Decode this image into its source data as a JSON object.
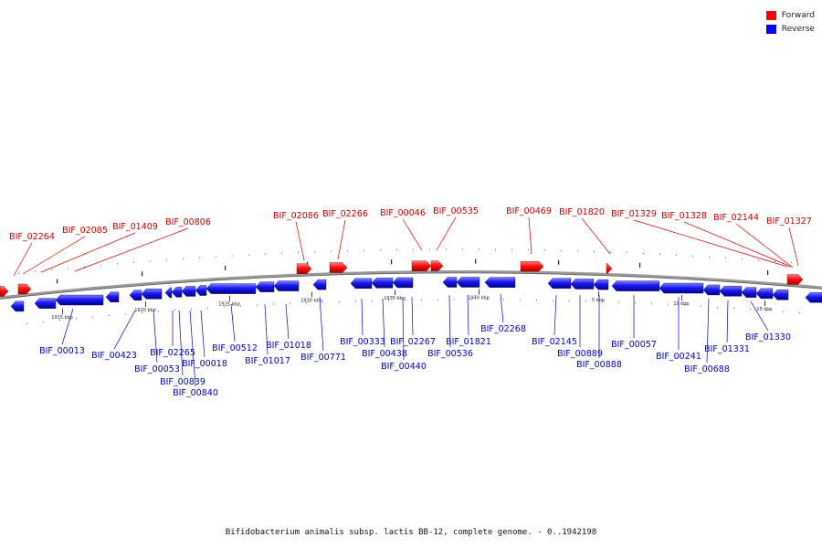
{
  "title": "Bifidobacterium animalis subsp. lactis BB-12, complete genome. - 0..1942198",
  "legend": [
    {
      "label": "Forward",
      "color": "#ff0000"
    },
    {
      "label": "Reverse",
      "color": "#0000ff"
    }
  ],
  "colors": {
    "forward": "#e00000",
    "reverse": "#1a1ad6",
    "backbone": "#8a8a8a",
    "label_forward": "#c80000",
    "label_reverse": "#0000c0"
  },
  "ticks": [
    "1915 kbp",
    "1920 kbp",
    "1925 kbp",
    "1930 kbp",
    "1935 kbp",
    "1940 kbp",
    "5 kbp",
    "10 kbp",
    "15 kbp"
  ],
  "forward_genes": [
    "BIF_02264",
    "BIF_02085",
    "BIF_01409",
    "BIF_00806",
    "BIF_02086",
    "BIF_02266",
    "BIF_00046",
    "BIF_00535",
    "BIF_00469",
    "BIF_01820",
    "BIF_01329",
    "BIF_01328",
    "BIF_02144",
    "BIF_01327"
  ],
  "reverse_genes": [
    "BIF_00013",
    "BIF_00423",
    "BIF_00053",
    "BIF_02265",
    "BIF_00839",
    "BIF_00840",
    "BIF_00018",
    "BIF_00512",
    "BIF_01017",
    "BIF_01018",
    "BIF_00771",
    "BIF_00333",
    "BIF_00438",
    "BIF_00440",
    "BIF_02267",
    "BIF_00536",
    "BIF_01821",
    "BIF_02268",
    "BIF_02145",
    "BIF_00889",
    "BIF_00888",
    "BIF_00057",
    "BIF_00241",
    "BIF_00688",
    "BIF_01331",
    "BIF_01330"
  ]
}
